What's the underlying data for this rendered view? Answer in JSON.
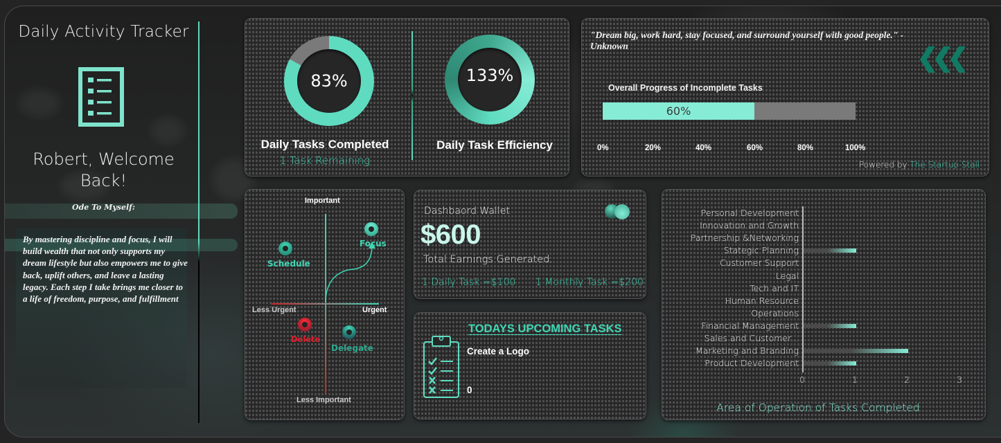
{
  "sidebar": {
    "app_title": "Daily Activity Tracker",
    "icon": "checklist-icon",
    "welcome": "Robert, Welcome Back!",
    "ode_title": "Ode To Myself:",
    "ode_text": "By mastering discipline and focus, I will build wealth that not only supports my dream lifestyle but also empowers me to give back, uplift others, and leave a lasting legacy. Each step I take brings me closer to a life of freedom, purpose, and fulfillment"
  },
  "kpis": {
    "tasks_completed": {
      "value": "83%",
      "percent": 83,
      "label": "Daily Tasks Completed",
      "sub": "1 Task Remaining"
    },
    "efficiency": {
      "value": "133%",
      "percent": 100,
      "label": "Daily Task Efficiency"
    }
  },
  "quote_card": {
    "quote": "\"Dream big, work hard, stay focused, and surround yourself with good people.\" - Unknown",
    "icon": "chevrons-left-icon",
    "progress_title": "Overall Progress of Incomplete Tasks",
    "progress_value": "60%",
    "progress_percent": 60,
    "ticks": [
      "0%",
      "20%",
      "40%",
      "60%",
      "80%",
      "100%"
    ],
    "powered_prefix": "Powered by",
    "powered_brand": "The Startup Stall"
  },
  "matrix": {
    "top": "Important",
    "bottom": "Less Important",
    "left": "Less Urgent",
    "right": "Urgent",
    "quadrants": {
      "schedule": "Schedule",
      "focus": "Focus",
      "delete": "Delete",
      "delegate": "Delegate"
    }
  },
  "wallet": {
    "title": "Dashbaord Wallet",
    "amount": "$600",
    "subtitle": "Total Earnings Generated.",
    "daily_rate": "1 Daily Task =$100",
    "monthly_rate": "1 Monthly Task =$200",
    "icon": "toggle-circles-icon"
  },
  "tasks": {
    "title": "TODAYS UPCOMING TASKS",
    "items": [
      "Create a Logo",
      "0"
    ],
    "icon": "clipboard-checklist-icon"
  },
  "chart_data": {
    "type": "bar",
    "orientation": "horizontal",
    "title": "Area of Operation of Tasks Completed",
    "categories": [
      "Personal Development",
      "Innovation and Growth",
      "Partnership &Networking",
      "Stategic Planning",
      "Customer Support",
      "Legal",
      "Tech and IT",
      "Human Resource",
      "Operations",
      "Financial Management",
      "Sales and Customer...",
      "Marketing and Branding",
      "Product Development"
    ],
    "values": [
      0,
      0,
      0,
      1,
      0,
      0,
      0,
      0,
      0,
      1,
      0,
      2,
      1
    ],
    "xlim": [
      0,
      3
    ],
    "xticks": [
      "0",
      "1",
      "2",
      "3"
    ],
    "xlabel": "",
    "ylabel": "",
    "grid": false,
    "bar_color": "#86ecd6"
  },
  "colors": {
    "accent": "#3fd6b4",
    "accent_light": "#86ecd6",
    "delete_red": "#e0202e",
    "chevron_green": "#107a63"
  }
}
